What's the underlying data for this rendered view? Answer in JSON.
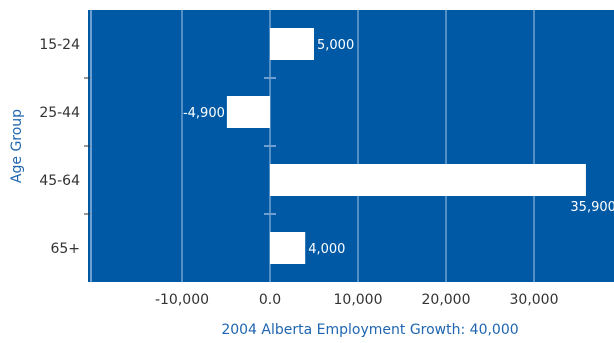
{
  "chart_data": {
    "type": "bar",
    "orientation": "horizontal",
    "categories": [
      "15-24",
      "25-44",
      "45-64",
      "65+"
    ],
    "values": [
      5000,
      -4900,
      35900,
      4000
    ],
    "value_labels": [
      "5,000",
      "-4,900",
      "35,900",
      "4,000"
    ],
    "xlabel": "2004 Alberta Employment Growth: 40,000",
    "ylabel": "Age Group",
    "xlim": [
      -20000,
      40000
    ],
    "xticks": [
      -10000,
      0,
      10000,
      20000,
      30000
    ],
    "xtick_labels": [
      "-10,000",
      "0.0",
      "10,000",
      "20,000",
      "30,000"
    ],
    "grid": true
  },
  "colors": {
    "plot_background": "#0059a5",
    "bar": "#ffffff",
    "gridline": "#6f9fd0",
    "axis_title": "#2066b0"
  }
}
